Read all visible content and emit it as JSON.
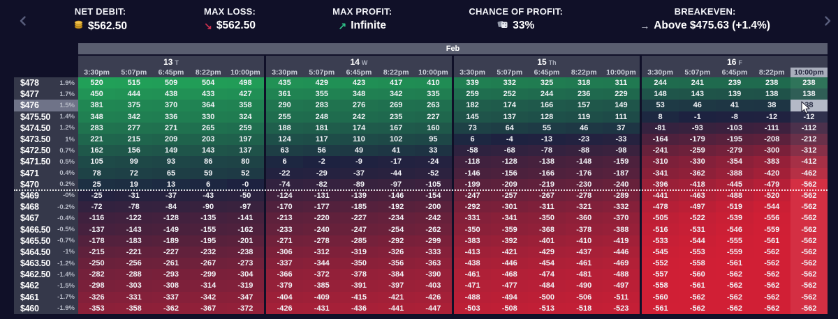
{
  "topbar": {
    "stats": [
      {
        "label": "NET DEBIT:",
        "value": "$562.50",
        "icon": "coins-icon"
      },
      {
        "label": "MAX LOSS:",
        "value": "$562.50",
        "icon": "arrow-down-right-icon",
        "icon_color": "#c9304e"
      },
      {
        "label": "MAX PROFIT:",
        "value": "Infinite",
        "icon": "arrow-up-right-icon",
        "icon_color": "#2ebd85"
      },
      {
        "label": "CHANCE OF PROFIT:",
        "value": "33%",
        "icon": "dice-icon"
      },
      {
        "label": "BREAKEVEN:",
        "value": "Above $475.63 (+1.4%)",
        "icon": "arrow-right-icon",
        "icon_color": "#cdd1dd"
      }
    ]
  },
  "calendar": {
    "month": "Feb",
    "days": [
      {
        "day": "13",
        "dow": "T"
      },
      {
        "day": "14",
        "dow": "W"
      },
      {
        "day": "15",
        "dow": "Th"
      },
      {
        "day": "16",
        "dow": "F"
      }
    ],
    "times": [
      "3:30pm",
      "5:07pm",
      "6:45pm",
      "8:22pm",
      "10:00pm"
    ],
    "selected": {
      "day_index": 3,
      "time_index": 4
    }
  },
  "heatmap": {
    "selected_cell": {
      "row_index": 2,
      "col_index": 19
    },
    "breakeven_after_row_index": 9,
    "colors": {
      "positive": "#21a058",
      "negative": "#d11f35",
      "neutral": "#1d2240",
      "selected_bg": "#b4b9c7",
      "selected_text": "#2a2e45",
      "value_green_max": 520,
      "value_red_min": -562
    },
    "rows": [
      {
        "price": "$478",
        "pct": "1.9%",
        "values": [
          "520",
          "515",
          "509",
          "504",
          "498",
          "435",
          "429",
          "423",
          "417",
          "410",
          "339",
          "332",
          "325",
          "318",
          "311",
          "244",
          "241",
          "239",
          "238",
          "238"
        ]
      },
      {
        "price": "$477",
        "pct": "1.7%",
        "values": [
          "450",
          "444",
          "438",
          "433",
          "427",
          "361",
          "355",
          "348",
          "342",
          "335",
          "259",
          "252",
          "244",
          "236",
          "229",
          "148",
          "143",
          "139",
          "138",
          "138"
        ]
      },
      {
        "price": "$476",
        "pct": "1.5%",
        "values": [
          "381",
          "375",
          "370",
          "364",
          "358",
          "290",
          "283",
          "276",
          "269",
          "263",
          "182",
          "174",
          "166",
          "157",
          "149",
          "53",
          "46",
          "41",
          "38",
          "38"
        ]
      },
      {
        "price": "$475.50",
        "pct": "1.4%",
        "values": [
          "348",
          "342",
          "336",
          "330",
          "324",
          "255",
          "248",
          "242",
          "235",
          "227",
          "145",
          "137",
          "128",
          "119",
          "111",
          "8",
          "-1",
          "-8",
          "-12",
          "-12"
        ]
      },
      {
        "price": "$474.50",
        "pct": "1.2%",
        "values": [
          "283",
          "277",
          "271",
          "265",
          "259",
          "188",
          "181",
          "174",
          "167",
          "160",
          "73",
          "64",
          "55",
          "46",
          "37",
          "-81",
          "-93",
          "-103",
          "-111",
          "-112"
        ]
      },
      {
        "price": "$473.50",
        "pct": "1%",
        "values": [
          "221",
          "215",
          "209",
          "203",
          "197",
          "124",
          "117",
          "110",
          "102",
          "95",
          "6",
          "-4",
          "-13",
          "-23",
          "-33",
          "-164",
          "-179",
          "-195",
          "-208",
          "-212"
        ]
      },
      {
        "price": "$472.50",
        "pct": "0.7%",
        "values": [
          "162",
          "156",
          "149",
          "143",
          "137",
          "63",
          "56",
          "49",
          "41",
          "33",
          "-58",
          "-68",
          "-78",
          "-88",
          "-98",
          "-241",
          "-259",
          "-279",
          "-300",
          "-312"
        ]
      },
      {
        "price": "$471.50",
        "pct": "0.5%",
        "values": [
          "105",
          "99",
          "93",
          "86",
          "80",
          "6",
          "-2",
          "-9",
          "-17",
          "-24",
          "-118",
          "-128",
          "-138",
          "-148",
          "-159",
          "-310",
          "-330",
          "-354",
          "-383",
          "-412"
        ]
      },
      {
        "price": "$471",
        "pct": "0.4%",
        "values": [
          "78",
          "72",
          "65",
          "59",
          "52",
          "-22",
          "-29",
          "-37",
          "-44",
          "-52",
          "-146",
          "-156",
          "-166",
          "-176",
          "-187",
          "-341",
          "-362",
          "-388",
          "-420",
          "-462"
        ]
      },
      {
        "price": "$470",
        "pct": "0.2%",
        "values": [
          "25",
          "19",
          "13",
          "6",
          "-0",
          "-74",
          "-82",
          "-89",
          "-97",
          "-105",
          "-199",
          "-209",
          "-219",
          "-230",
          "-240",
          "-396",
          "-418",
          "-445",
          "-479",
          "-562"
        ]
      },
      {
        "price": "$469",
        "pct": "-0%",
        "values": [
          "-25",
          "-31",
          "-37",
          "-43",
          "-50",
          "-124",
          "-131",
          "-139",
          "-146",
          "-154",
          "-247",
          "-257",
          "-267",
          "-278",
          "-289",
          "-441",
          "-463",
          "-488",
          "-520",
          "-562"
        ]
      },
      {
        "price": "$468",
        "pct": "-0.2%",
        "values": [
          "-72",
          "-78",
          "-84",
          "-90",
          "-97",
          "-170",
          "-177",
          "-185",
          "-192",
          "-200",
          "-292",
          "-301",
          "-311",
          "-321",
          "-332",
          "-478",
          "-497",
          "-519",
          "-544",
          "-562"
        ]
      },
      {
        "price": "$467",
        "pct": "-0.4%",
        "values": [
          "-116",
          "-122",
          "-128",
          "-135",
          "-141",
          "-213",
          "-220",
          "-227",
          "-234",
          "-242",
          "-331",
          "-341",
          "-350",
          "-360",
          "-370",
          "-505",
          "-522",
          "-539",
          "-556",
          "-562"
        ]
      },
      {
        "price": "$466.50",
        "pct": "-0.5%",
        "values": [
          "-137",
          "-143",
          "-149",
          "-155",
          "-162",
          "-233",
          "-240",
          "-247",
          "-254",
          "-262",
          "-350",
          "-359",
          "-368",
          "-378",
          "-388",
          "-516",
          "-531",
          "-546",
          "-559",
          "-562"
        ]
      },
      {
        "price": "$465.50",
        "pct": "-0.7%",
        "values": [
          "-178",
          "-183",
          "-189",
          "-195",
          "-201",
          "-271",
          "-278",
          "-285",
          "-292",
          "-299",
          "-383",
          "-392",
          "-401",
          "-410",
          "-419",
          "-533",
          "-544",
          "-555",
          "-561",
          "-562"
        ]
      },
      {
        "price": "$464.50",
        "pct": "-1%",
        "values": [
          "-215",
          "-221",
          "-227",
          "-232",
          "-238",
          "-306",
          "-312",
          "-319",
          "-326",
          "-333",
          "-413",
          "-421",
          "-429",
          "-437",
          "-446",
          "-545",
          "-553",
          "-559",
          "-562",
          "-562"
        ]
      },
      {
        "price": "$463.50",
        "pct": "-1.2%",
        "values": [
          "-250",
          "-256",
          "-261",
          "-267",
          "-273",
          "-337",
          "-344",
          "-350",
          "-356",
          "-363",
          "-438",
          "-446",
          "-454",
          "-461",
          "-469",
          "-552",
          "-558",
          "-561",
          "-562",
          "-562"
        ]
      },
      {
        "price": "$462.50",
        "pct": "-1.4%",
        "values": [
          "-282",
          "-288",
          "-293",
          "-299",
          "-304",
          "-366",
          "-372",
          "-378",
          "-384",
          "-390",
          "-461",
          "-468",
          "-474",
          "-481",
          "-488",
          "-557",
          "-560",
          "-562",
          "-562",
          "-562"
        ]
      },
      {
        "price": "$462",
        "pct": "-1.5%",
        "values": [
          "-298",
          "-303",
          "-308",
          "-314",
          "-319",
          "-379",
          "-385",
          "-391",
          "-397",
          "-403",
          "-471",
          "-477",
          "-484",
          "-490",
          "-497",
          "-558",
          "-561",
          "-562",
          "-562",
          "-562"
        ]
      },
      {
        "price": "$461",
        "pct": "-1.7%",
        "values": [
          "-326",
          "-331",
          "-337",
          "-342",
          "-347",
          "-404",
          "-409",
          "-415",
          "-421",
          "-426",
          "-488",
          "-494",
          "-500",
          "-506",
          "-511",
          "-560",
          "-562",
          "-562",
          "-562",
          "-562"
        ]
      },
      {
        "price": "$460",
        "pct": "-1.9%",
        "values": [
          "-353",
          "-358",
          "-362",
          "-367",
          "-372",
          "-426",
          "-431",
          "-436",
          "-441",
          "-447",
          "-503",
          "-508",
          "-513",
          "-518",
          "-523",
          "-561",
          "-562",
          "-562",
          "-562",
          "-562"
        ]
      }
    ]
  }
}
